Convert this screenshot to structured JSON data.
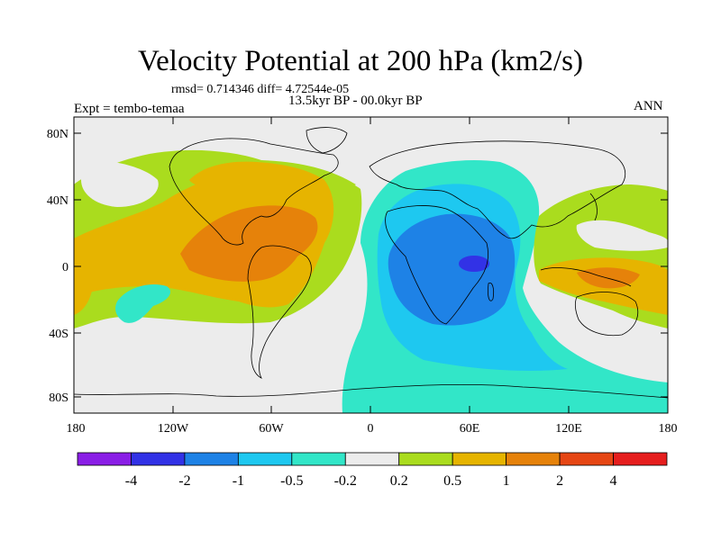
{
  "header": {
    "title": "Velocity Potential at 200 hPa (km2/s)",
    "stats": "rmsd= 0.714346 diff= 4.72544e-05",
    "period": "13.5kyr BP - 00.0kyr BP",
    "experiment": "Expt = tembo-temaa",
    "season": "ANN"
  },
  "axes": {
    "lat_labels": [
      "80N",
      "40N",
      "0",
      "40S",
      "80S"
    ],
    "lon_labels": [
      "180",
      "120W",
      "60W",
      "0",
      "60E",
      "120E",
      "180"
    ]
  },
  "colorbar": {
    "labels": [
      "-4",
      "-2",
      "-1",
      "-0.5",
      "-0.2",
      "0.2",
      "0.5",
      "1",
      "2",
      "4"
    ],
    "colors": [
      "#8a1ee6",
      "#3232e6",
      "#1e82e6",
      "#1ec8f0",
      "#32e6c8",
      "#ececec",
      "#aadc1e",
      "#e6b400",
      "#e6820a",
      "#e64614",
      "#e61e1e"
    ]
  },
  "map_colors": {
    "ocean_bg": "#ececec",
    "green": "#aadc1e",
    "yellow": "#e6b400",
    "orange": "#e6820a",
    "teal": "#32e6c8",
    "cyan": "#1ec8f0",
    "blue": "#1e82e6",
    "darkblue": "#3232e6"
  }
}
